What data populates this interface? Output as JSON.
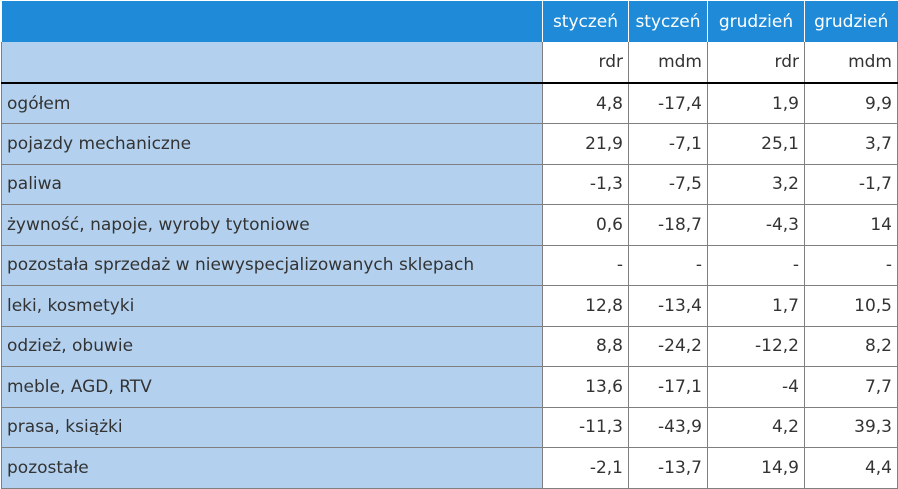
{
  "table": {
    "header_top": [
      "",
      "styczeń",
      "styczeń",
      "grudzień",
      "grudzień"
    ],
    "header_sub": [
      "",
      "rdr",
      "mdm",
      "rdr",
      "mdm"
    ],
    "rows": [
      {
        "label": "ogółem",
        "values": [
          "4,8",
          "-17,4",
          "1,9",
          "9,9"
        ]
      },
      {
        "label": "pojazdy mechaniczne",
        "values": [
          "21,9",
          "-7,1",
          "25,1",
          "3,7"
        ]
      },
      {
        "label": "paliwa",
        "values": [
          "-1,3",
          "-7,5",
          "3,2",
          "-1,7"
        ]
      },
      {
        "label": "żywność, napoje, wyroby tytoniowe",
        "values": [
          "0,6",
          "-18,7",
          "-4,3",
          "14"
        ]
      },
      {
        "label": "pozostała sprzedaż w niewyspecjalizowanych sklepach",
        "values": [
          "-",
          "-",
          "-",
          "-"
        ]
      },
      {
        "label": "leki, kosmetyki",
        "values": [
          "12,8",
          "-13,4",
          "1,7",
          "10,5"
        ]
      },
      {
        "label": "odzież, obuwie",
        "values": [
          "8,8",
          "-24,2",
          "-12,2",
          "8,2"
        ]
      },
      {
        "label": "meble, AGD, RTV",
        "values": [
          "13,6",
          "-17,1",
          "-4",
          "7,7"
        ]
      },
      {
        "label": "prasa, książki",
        "values": [
          "-11,3",
          "-43,9",
          "4,2",
          "39,3"
        ]
      },
      {
        "label": "pozostałe",
        "values": [
          "-2,1",
          "-13,7",
          "14,9",
          "4,4"
        ]
      }
    ]
  },
  "colors": {
    "header_blue": "#1f8bd8",
    "label_blue": "#b3d1ef",
    "text": "#333333"
  }
}
